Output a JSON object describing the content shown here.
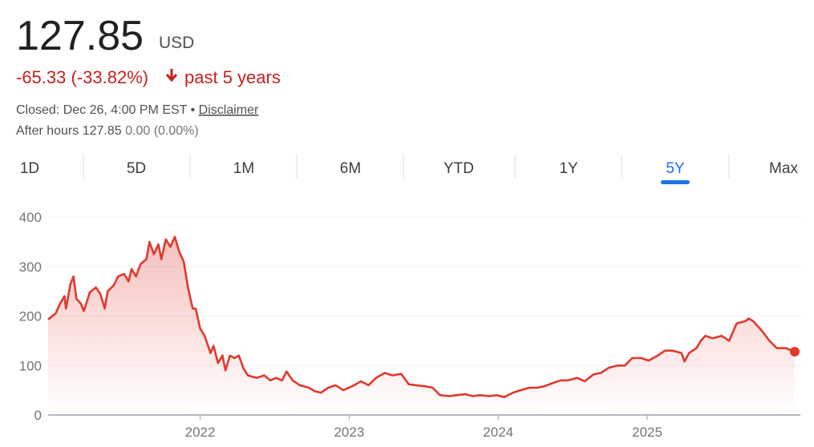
{
  "header": {
    "price": "127.85",
    "currency": "USD",
    "change": "-65.33 (-33.82%)",
    "period": "past 5 years",
    "closed": "Closed: Dec 26, 4:00 PM EST",
    "separator": "•",
    "disclaimer": "Disclaimer",
    "after_hours": {
      "label": "After hours",
      "price": "127.85",
      "change": "0.00 (0.00%)"
    }
  },
  "tabs": [
    "1D",
    "5D",
    "1M",
    "6M",
    "YTD",
    "1Y",
    "5Y",
    "Max"
  ],
  "active_tab": 6,
  "chart_data": {
    "type": "line",
    "color": "#e0392e",
    "grid": true,
    "x": [
      2020.98,
      2021.03,
      2021.06,
      2021.09,
      2021.1,
      2021.13,
      2021.15,
      2021.17,
      2021.2,
      2021.22,
      2021.26,
      2021.3,
      2021.33,
      2021.36,
      2021.38,
      2021.42,
      2021.45,
      2021.49,
      2021.52,
      2021.54,
      2021.57,
      2021.6,
      2021.64,
      2021.66,
      2021.69,
      2021.72,
      2021.74,
      2021.77,
      2021.8,
      2021.83,
      2021.86,
      2021.89,
      2021.92,
      2021.95,
      2021.97,
      2022.0,
      2022.03,
      2022.07,
      2022.09,
      2022.12,
      2022.15,
      2022.17,
      2022.2,
      2022.23,
      2022.26,
      2022.29,
      2022.32,
      2022.38,
      2022.43,
      2022.47,
      2022.51,
      2022.55,
      2022.58,
      2022.62,
      2022.67,
      2022.73,
      2022.77,
      2022.81,
      2022.86,
      2022.91,
      2022.96,
      2023.02,
      2023.08,
      2023.13,
      2023.18,
      2023.24,
      2023.29,
      2023.35,
      2023.4,
      2023.45,
      2023.51,
      2023.56,
      2023.61,
      2023.67,
      2023.72,
      2023.78,
      2023.83,
      2023.88,
      2023.94,
      2023.99,
      2024.04,
      2024.1,
      2024.15,
      2024.21,
      2024.26,
      2024.31,
      2024.37,
      2024.42,
      2024.47,
      2024.53,
      2024.58,
      2024.64,
      2024.69,
      2024.74,
      2024.8,
      2024.85,
      2024.9,
      2024.96,
      2025.01,
      2025.07,
      2025.12,
      2025.17,
      2025.23,
      2025.25,
      2025.28,
      2025.33,
      2025.36,
      2025.39,
      2025.44,
      2025.5,
      2025.55,
      2025.6,
      2025.66,
      2025.68,
      2025.71,
      2025.77,
      2025.82,
      2025.87,
      2025.93,
      2025.99
    ],
    "values": [
      193,
      205,
      225,
      240,
      215,
      265,
      280,
      235,
      225,
      210,
      248,
      258,
      245,
      215,
      250,
      262,
      280,
      285,
      270,
      295,
      280,
      305,
      315,
      350,
      325,
      345,
      315,
      355,
      340,
      360,
      330,
      310,
      255,
      215,
      215,
      175,
      160,
      125,
      140,
      105,
      120,
      90,
      120,
      115,
      120,
      95,
      80,
      75,
      80,
      70,
      75,
      70,
      88,
      70,
      60,
      55,
      48,
      45,
      55,
      60,
      50,
      58,
      68,
      60,
      75,
      85,
      80,
      83,
      62,
      60,
      58,
      55,
      40,
      38,
      40,
      42,
      38,
      40,
      38,
      40,
      36,
      45,
      50,
      55,
      55,
      58,
      65,
      70,
      70,
      75,
      68,
      82,
      85,
      95,
      100,
      100,
      115,
      115,
      110,
      120,
      130,
      130,
      125,
      108,
      125,
      135,
      150,
      160,
      155,
      160,
      150,
      185,
      190,
      195,
      190,
      170,
      150,
      135,
      135,
      127.85
    ],
    "xlim": [
      2020.98,
      2025.99
    ],
    "xticks": [
      2022,
      2023,
      2024,
      2025
    ],
    "ylim": [
      0,
      400
    ],
    "yticks": [
      0,
      100,
      200,
      300,
      400
    ]
  }
}
